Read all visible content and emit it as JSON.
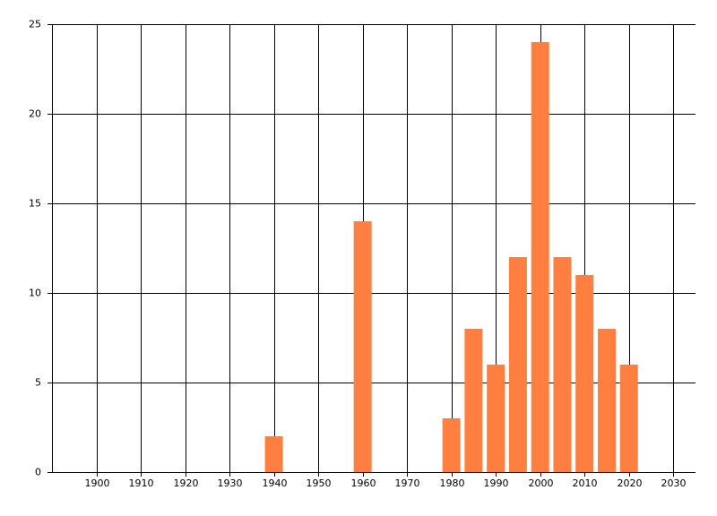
{
  "chart_data": {
    "type": "bar",
    "x": [
      1940,
      1960,
      1980,
      1985,
      1990,
      1995,
      2000,
      2005,
      2010,
      2015,
      2020
    ],
    "values": [
      2,
      14,
      3,
      8,
      6,
      12,
      24,
      12,
      11,
      8,
      6
    ],
    "color": "#ff7f40",
    "xlim": [
      1890,
      2035
    ],
    "xticks": [
      1900,
      1910,
      1920,
      1930,
      1940,
      1950,
      1960,
      1970,
      1980,
      1990,
      2000,
      2010,
      2020,
      2030
    ],
    "ylim": [
      0,
      25
    ],
    "yticks": [
      0,
      5,
      10,
      15,
      20,
      25
    ],
    "grid": true
  }
}
